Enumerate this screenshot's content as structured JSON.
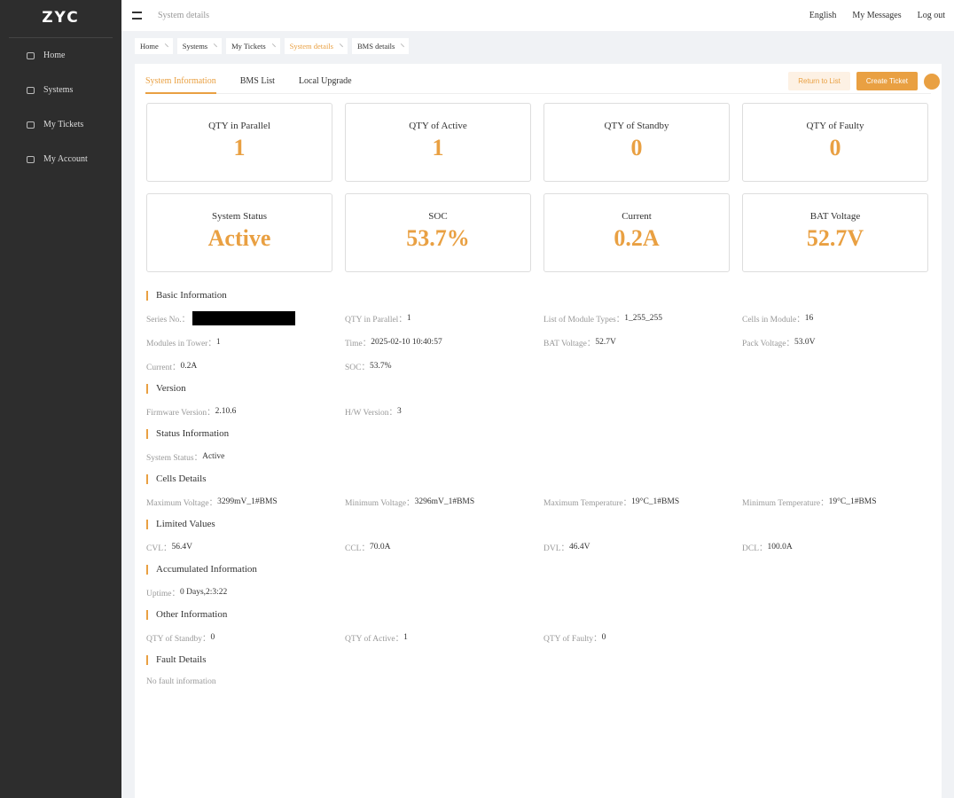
{
  "sidebar": {
    "logo": "ZYC",
    "menu": [
      "Home",
      "Systems",
      "My Tickets",
      "My Account"
    ]
  },
  "header": {
    "page": "System details",
    "language": "English",
    "messages": "My Messages",
    "logout": "Log out"
  },
  "tabs": [
    "Home",
    "Systems",
    "My Tickets",
    "System details",
    "BMS details"
  ],
  "subtabs": [
    "System Information",
    "BMS List",
    "Local Upgrade"
  ],
  "buttons": {
    "return": "Return to List",
    "create": "Create Ticket"
  },
  "cards": [
    {
      "label": "QTY in Parallel",
      "value": "1"
    },
    {
      "label": "QTY of Active",
      "value": "1"
    },
    {
      "label": "QTY of Standby",
      "value": "0"
    },
    {
      "label": "QTY of Faulty",
      "value": "0"
    },
    {
      "label": "System Status",
      "value": "Active"
    },
    {
      "label": "SOC",
      "value": "53.7%"
    },
    {
      "label": "Current",
      "value": "0.2A"
    },
    {
      "label": "BAT Voltage",
      "value": "52.7V"
    }
  ],
  "sections": [
    {
      "title": "Basic Information",
      "fields": [
        {
          "label": "Series No.："
        },
        {
          "label": "QTY in Parallel：",
          "value": "1"
        },
        {
          "label": "List of Module Types：",
          "value": "1_255_255"
        },
        {
          "label": "Cells in Module：",
          "value": "16"
        },
        {
          "label": "Modules in Tower：",
          "value": "1"
        },
        {
          "label": "Time：",
          "value": "2025-02-10 10:40:57"
        },
        {
          "label": "BAT Voltage：",
          "value": "52.7V"
        },
        {
          "label": "Pack Voltage：",
          "value": "53.0V"
        },
        {
          "label": "Current：",
          "value": "0.2A"
        },
        {
          "label": "SOC：",
          "value": "53.7%"
        }
      ]
    },
    {
      "title": "Version",
      "fields": [
        {
          "label": "Firmware Version：",
          "value": "2.10.6"
        },
        {
          "label": "H/W Version：",
          "value": "3"
        }
      ]
    },
    {
      "title": "Status Information",
      "fields": [
        {
          "label": "System Status：",
          "value": "Active"
        }
      ]
    },
    {
      "title": "Cells Details",
      "fields": [
        {
          "label": "Maximum Voltage：",
          "value": "3299mV_1#BMS"
        },
        {
          "label": "Minimum Voltage：",
          "value": "3296mV_1#BMS"
        },
        {
          "label": "Maximum Temperature：",
          "value": "19°C_1#BMS"
        },
        {
          "label": "Minimum Temperature：",
          "value": "19°C_1#BMS"
        }
      ]
    },
    {
      "title": "Limited Values",
      "fields": [
        {
          "label": "CVL：",
          "value": "56.4V"
        },
        {
          "label": "CCL：",
          "value": "70.0A"
        },
        {
          "label": "DVL：",
          "value": "46.4V"
        },
        {
          "label": "DCL：",
          "value": "100.0A"
        }
      ]
    },
    {
      "title": "Accumulated Information",
      "fields": [
        {
          "label": "Uptime：",
          "value": "0 Days,2:3:22"
        }
      ]
    },
    {
      "title": "Other Information",
      "fields": [
        {
          "label": "QTY of Standby：",
          "value": "0"
        },
        {
          "label": "QTY of Active：",
          "value": "1"
        },
        {
          "label": "QTY of Faulty：",
          "value": "0"
        }
      ]
    },
    {
      "title": "Fault Details",
      "text": "No fault information"
    }
  ]
}
